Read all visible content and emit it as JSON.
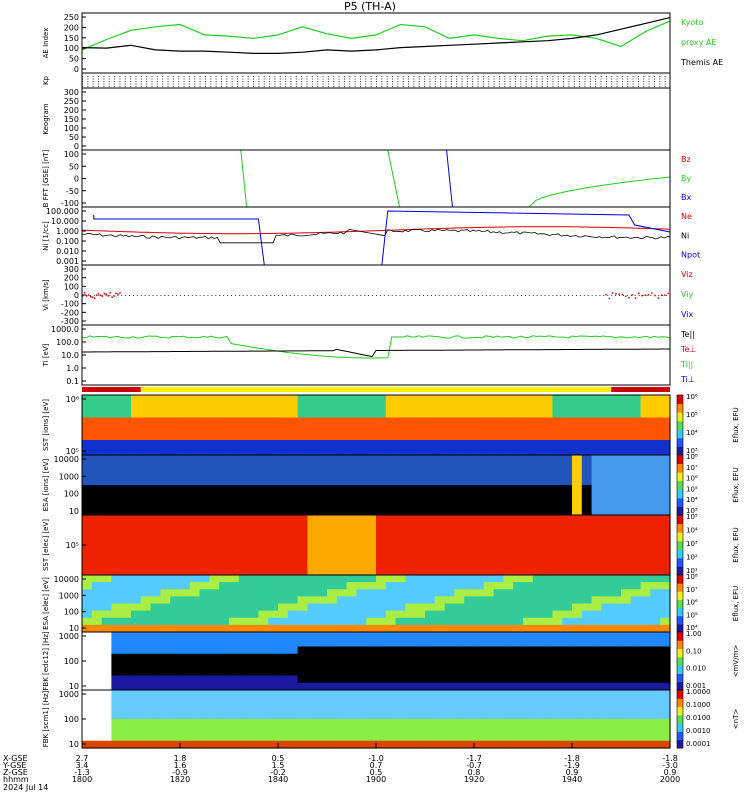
{
  "chart_data": {
    "type": "line",
    "title": "P5 (TH-A)",
    "date_label": "2024 Jul 14",
    "x_ticks": [
      "1800",
      "1820",
      "1840",
      "1900",
      "1920",
      "1940",
      "2000"
    ],
    "ephemeris": {
      "labels": [
        "X-GSE",
        "Y-GSE",
        "Z-GSE",
        "hhmm"
      ],
      "rows": [
        [
          "2.7",
          "1.8",
          "0.5",
          "-1.0",
          "-1.7",
          "-1.8",
          "-1.8"
        ],
        [
          "3.4",
          "1.6",
          "1.5",
          "0.7",
          "-0.7",
          "-1.9",
          "-3.0"
        ],
        [
          "-1.3",
          "-0.9",
          "-0.2",
          "0.5",
          "0.8",
          "0.9",
          "0.9"
        ],
        [
          "1800",
          "1820",
          "1840",
          "1900",
          "1920",
          "1940",
          "2000"
        ]
      ]
    },
    "panels": [
      {
        "ylabel": "AE Index",
        "ticks": [
          "0",
          "50",
          "100",
          "150",
          "200",
          "250"
        ],
        "legend": [
          {
            "text": "Kyoto",
            "color": "#22cc22"
          },
          {
            "text": "proxy AE",
            "color": "#22cc22"
          },
          {
            "text": "Themis AE",
            "color": "#000000"
          }
        ],
        "ylim": [
          0,
          260
        ],
        "series": [
          {
            "name": "Kyoto proxy AE",
            "color": "#22cc22",
            "x": [
              0,
              5,
              10,
              15,
              20,
              25,
              30,
              35,
              40,
              45,
              50,
              55,
              60,
              65,
              70,
              75,
              80,
              85,
              90,
              95,
              100,
              105,
              110,
              115,
              120
            ],
            "y": [
              100,
              145,
              185,
              200,
              210,
              165,
              160,
              150,
              165,
              200,
              170,
              150,
              165,
              210,
              200,
              150,
              165,
              150,
              140,
              160,
              165,
              150,
              115,
              180,
              225
            ]
          },
          {
            "name": "Themis AE",
            "color": "#000000",
            "x": [
              0,
              5,
              10,
              15,
              20,
              25,
              30,
              35,
              40,
              45,
              50,
              55,
              60,
              65,
              70,
              75,
              80,
              85,
              90,
              95,
              100,
              105,
              110,
              115,
              120
            ],
            "y": [
              110,
              108,
              120,
              100,
              95,
              95,
              90,
              85,
              85,
              90,
              100,
              95,
              100,
              110,
              115,
              120,
              125,
              130,
              135,
              140,
              150,
              165,
              190,
              215,
              240
            ]
          }
        ]
      },
      {
        "ylabel": "Kp",
        "ticks": [],
        "legend": []
      },
      {
        "ylabel": "Keogram",
        "ticks": [
          "0",
          "50",
          "100",
          "150",
          "200",
          "250",
          "300"
        ],
        "legend": []
      },
      {
        "ylabel": "B FFT [GSE] [nT]",
        "ticks": [
          "-100",
          "-50",
          "0",
          "50",
          "100"
        ],
        "legend": [
          {
            "text": "Bz",
            "color": "#dd0000"
          },
          {
            "text": "By",
            "color": "#22cc22"
          },
          {
            "text": "Bx",
            "color": "#0000dd"
          }
        ]
      },
      {
        "ylabel": "Ni [1/cc]",
        "ticks": [
          "0.001",
          "0.010",
          "0.100",
          "1.000",
          "10.000",
          "100.000"
        ],
        "legend": [
          {
            "text": "Ne",
            "color": "#dd0000"
          },
          {
            "text": "Ni",
            "color": "#000000"
          },
          {
            "text": "Npot",
            "color": "#0000dd"
          }
        ]
      },
      {
        "ylabel": "Vi [km/s]",
        "ticks": [
          "-300",
          "-200",
          "-100",
          "0",
          "100",
          "200",
          "300"
        ],
        "legend": [
          {
            "text": "Viz",
            "color": "#dd0000"
          },
          {
            "text": "Viy",
            "color": "#22cc22"
          },
          {
            "text": "Vix",
            "color": "#0000dd"
          }
        ]
      },
      {
        "ylabel": "Ti [eV]",
        "ticks": [
          "0.1",
          "1.0",
          "10.0",
          "100.0",
          "1000.0"
        ],
        "legend": [
          {
            "text": "Te||",
            "color": "#000000"
          },
          {
            "text": "Te⊥",
            "color": "#dd0000"
          },
          {
            "text": "Ti||",
            "color": "#22cc22"
          },
          {
            "text": "Ti⊥",
            "color": "#0000dd"
          }
        ]
      },
      {
        "ylabel": "SST [ions] [eV]",
        "ticks": [
          "10⁵",
          "10⁶"
        ],
        "cbar_label": "Eflux, EFU",
        "cbar_ticks": [
          "10³",
          "10⁴",
          "10⁵",
          "10⁶"
        ]
      },
      {
        "ylabel": "ESA [ions] [eV]",
        "ticks": [
          "10",
          "100",
          "1000",
          "10000"
        ],
        "cbar_label": "Eflux, EFU",
        "cbar_ticks": [
          "10³",
          "10⁴",
          "10⁵",
          "10⁶",
          "10⁷",
          "10⁸"
        ]
      },
      {
        "ylabel": "SST [elec] [eV]",
        "ticks": [
          "10⁵"
        ],
        "cbar_label": "Eflux, EFU",
        "cbar_ticks": [
          "10¹",
          "10²",
          "10³",
          "10⁴",
          "10⁵"
        ]
      },
      {
        "ylabel": "ESA [elec] [eV]",
        "ticks": [
          "10",
          "100",
          "1000",
          "10000"
        ],
        "cbar_label": "Eflux, EFU",
        "cbar_ticks": [
          "10⁴",
          "10⁵",
          "10⁶",
          "10⁷",
          "10⁸"
        ]
      },
      {
        "ylabel": "FBK [edc12] [Hz]",
        "ticks": [
          "10",
          "100",
          "1000"
        ],
        "cbar_label": "<mV/m>",
        "cbar_ticks": [
          "0.001",
          "0.010",
          "0.10",
          "1.00"
        ]
      },
      {
        "ylabel": "FBK [scm1] [Hz]",
        "ticks": [
          "10",
          "100",
          "1000"
        ],
        "cbar_label": "<nT>",
        "cbar_ticks": [
          "0.0001",
          "0.0010",
          "0.0100",
          "0.1000",
          "1.0000"
        ]
      }
    ]
  }
}
